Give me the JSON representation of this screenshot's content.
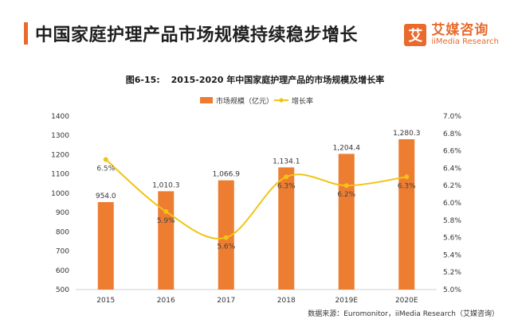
{
  "header": {
    "title": "中国家庭护理产品市场规模持续稳步增长",
    "brand_logo_char": "艾",
    "brand_cn": "艾媒咨询",
    "brand_en": "iiMedia Research"
  },
  "colors": {
    "accent": "#e96a2c",
    "bar": "#ed7d31",
    "line": "#f2c314"
  },
  "source": "数据来源：Euromonitor，iiMedia Research（艾媒咨询）",
  "chart_data": {
    "type": "bar",
    "figure_label": "图6-15:",
    "title": "2015-2020 年中国家庭护理产品的市场规模及增长率",
    "categories": [
      "2015",
      "2016",
      "2017",
      "2018",
      "2019E",
      "2020E"
    ],
    "series": [
      {
        "name": "市场规模（亿元）",
        "type": "bar",
        "axis": "left",
        "values": [
          954.0,
          1010.3,
          1066.9,
          1134.1,
          1204.4,
          1280.3
        ],
        "labels": [
          "954.0",
          "1,010.3",
          "1,066.9",
          "1,134.1",
          "1,204.4",
          "1,280.3"
        ]
      },
      {
        "name": "增长率",
        "type": "line",
        "axis": "right",
        "values": [
          6.5,
          5.9,
          5.6,
          6.3,
          6.2,
          6.3
        ],
        "labels": [
          "6.5%",
          "5.9%",
          "5.6%",
          "6.3%",
          "6.2%",
          "6.3%"
        ]
      }
    ],
    "ylim_left": [
      500,
      1400
    ],
    "yticks_left": [
      "1400",
      "1300",
      "1200",
      "1100",
      "1000",
      "900",
      "800",
      "700",
      "600",
      "500"
    ],
    "ylim_right": [
      5.0,
      7.0
    ],
    "yticks_right": [
      "7.0%",
      "6.8%",
      "6.6%",
      "6.4%",
      "6.2%",
      "6.0%",
      "5.8%",
      "5.6%",
      "5.4%",
      "5.2%",
      "5.0%"
    ],
    "legend_position": "top-center",
    "grid": false
  }
}
